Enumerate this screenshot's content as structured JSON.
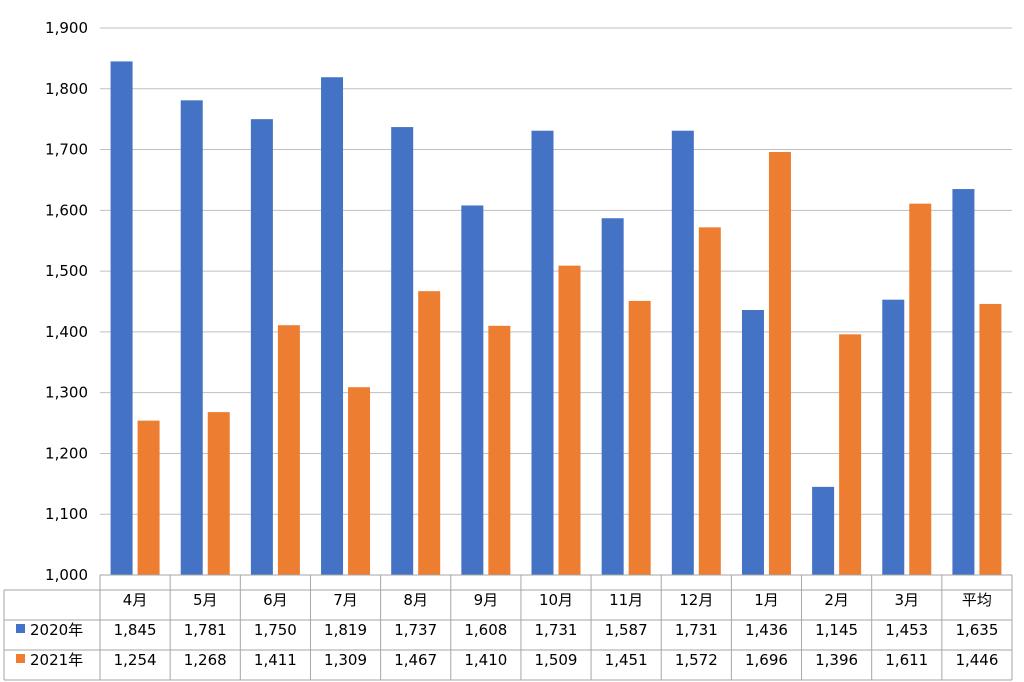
{
  "chart_data": {
    "type": "bar",
    "categories": [
      "4月",
      "5月",
      "6月",
      "7月",
      "8月",
      "9月",
      "10月",
      "11月",
      "12月",
      "1月",
      "2月",
      "3月",
      "平均"
    ],
    "series": [
      {
        "name": "2020年",
        "color": "#4472C4",
        "values": [
          1845,
          1781,
          1750,
          1819,
          1737,
          1608,
          1731,
          1587,
          1731,
          1436,
          1145,
          1453,
          1635
        ],
        "labels": [
          "1,845",
          "1,781",
          "1,750",
          "1,819",
          "1,737",
          "1,608",
          "1,731",
          "1,587",
          "1,731",
          "1,436",
          "1,145",
          "1,453",
          "1,635"
        ]
      },
      {
        "name": "2021年",
        "color": "#ED7D31",
        "values": [
          1254,
          1268,
          1411,
          1309,
          1467,
          1410,
          1509,
          1451,
          1572,
          1696,
          1396,
          1611,
          1446
        ],
        "labels": [
          "1,254",
          "1,268",
          "1,411",
          "1,309",
          "1,467",
          "1,410",
          "1,509",
          "1,451",
          "1,572",
          "1,696",
          "1,396",
          "1,611",
          "1,446"
        ]
      }
    ],
    "ylim": [
      1000,
      1900
    ],
    "yticks": [
      1000,
      1100,
      1200,
      1300,
      1400,
      1500,
      1600,
      1700,
      1800,
      1900
    ],
    "ytick_labels": [
      "1,000",
      "1,100",
      "1,200",
      "1,300",
      "1,400",
      "1,500",
      "1,600",
      "1,700",
      "1,800",
      "1,900"
    ],
    "grid": true,
    "data_table": true
  }
}
